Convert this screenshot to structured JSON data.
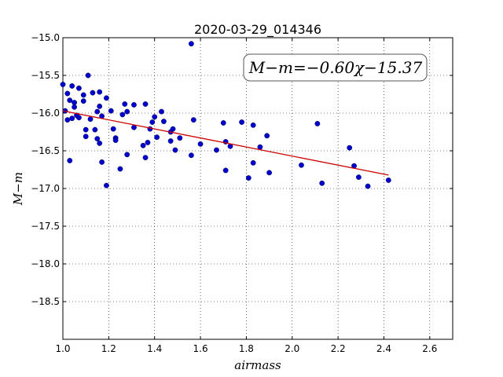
{
  "chart_data": {
    "type": "scatter",
    "title": "2020-03-29_014346",
    "xlabel": "airmass",
    "ylabel": "M−m",
    "xlim": [
      1.0,
      2.7
    ],
    "ylim": [
      -19.0,
      -15.0
    ],
    "y_inverted": true,
    "x_ticks": [
      "1.0",
      "1.2",
      "1.4",
      "1.6",
      "1.8",
      "2.0",
      "2.2",
      "2.4",
      "2.6"
    ],
    "y_ticks": [
      "−15.0",
      "−15.5",
      "−16.0",
      "−16.5",
      "−17.0",
      "−17.5",
      "−18.0",
      "−18.5"
    ],
    "grid": true,
    "annotation": "M−m=−0.60χ−15.37",
    "fit": {
      "slope": -0.6,
      "intercept": -15.37,
      "x_range": [
        1.0,
        2.42
      ],
      "color": "#cc0000"
    },
    "point_color": "#0000cc",
    "points": [
      [
        1.0,
        -15.62
      ],
      [
        1.01,
        -15.97
      ],
      [
        1.02,
        -15.74
      ],
      [
        1.02,
        -16.09
      ],
      [
        1.03,
        -16.63
      ],
      [
        1.03,
        -15.83
      ],
      [
        1.04,
        -15.64
      ],
      [
        1.04,
        -16.07
      ],
      [
        1.05,
        -15.92
      ],
      [
        1.05,
        -15.86
      ],
      [
        1.06,
        -16.03
      ],
      [
        1.07,
        -15.67
      ],
      [
        1.07,
        -16.06
      ],
      [
        1.09,
        -15.84
      ],
      [
        1.09,
        -15.76
      ],
      [
        1.1,
        -16.22
      ],
      [
        1.1,
        -16.31
      ],
      [
        1.11,
        -15.5
      ],
      [
        1.12,
        -16.08
      ],
      [
        1.13,
        -15.73
      ],
      [
        1.14,
        -16.22
      ],
      [
        1.15,
        -15.98
      ],
      [
        1.15,
        -16.34
      ],
      [
        1.16,
        -16.4
      ],
      [
        1.16,
        -15.91
      ],
      [
        1.16,
        -15.72
      ],
      [
        1.17,
        -16.65
      ],
      [
        1.17,
        -16.04
      ],
      [
        1.19,
        -16.96
      ],
      [
        1.19,
        -15.8
      ],
      [
        1.21,
        -15.97
      ],
      [
        1.22,
        -16.21
      ],
      [
        1.23,
        -16.33
      ],
      [
        1.23,
        -16.36
      ],
      [
        1.25,
        -16.74
      ],
      [
        1.26,
        -16.02
      ],
      [
        1.27,
        -15.88
      ],
      [
        1.28,
        -15.98
      ],
      [
        1.28,
        -16.55
      ],
      [
        1.31,
        -16.19
      ],
      [
        1.31,
        -15.89
      ],
      [
        1.35,
        -16.43
      ],
      [
        1.36,
        -15.88
      ],
      [
        1.36,
        -16.59
      ],
      [
        1.37,
        -16.39
      ],
      [
        1.38,
        -16.21
      ],
      [
        1.39,
        -16.12
      ],
      [
        1.4,
        -16.05
      ],
      [
        1.41,
        -16.32
      ],
      [
        1.43,
        -15.98
      ],
      [
        1.44,
        -16.11
      ],
      [
        1.47,
        -16.25
      ],
      [
        1.47,
        -16.37
      ],
      [
        1.48,
        -16.21
      ],
      [
        1.49,
        -16.49
      ],
      [
        1.51,
        -16.33
      ],
      [
        1.56,
        -15.08
      ],
      [
        1.56,
        -16.56
      ],
      [
        1.57,
        -16.09
      ],
      [
        1.6,
        -16.41
      ],
      [
        1.67,
        -16.49
      ],
      [
        1.7,
        -16.13
      ],
      [
        1.71,
        -16.38
      ],
      [
        1.71,
        -16.76
      ],
      [
        1.73,
        -16.44
      ],
      [
        1.78,
        -16.12
      ],
      [
        1.81,
        -16.86
      ],
      [
        1.83,
        -16.66
      ],
      [
        1.83,
        -16.16
      ],
      [
        1.86,
        -16.45
      ],
      [
        1.89,
        -16.3
      ],
      [
        1.9,
        -16.79
      ],
      [
        2.04,
        -16.69
      ],
      [
        2.11,
        -16.14
      ],
      [
        2.13,
        -16.93
      ],
      [
        2.25,
        -16.46
      ],
      [
        2.27,
        -16.7
      ],
      [
        2.29,
        -16.85
      ],
      [
        2.33,
        -16.97
      ],
      [
        2.42,
        -16.89
      ]
    ]
  }
}
